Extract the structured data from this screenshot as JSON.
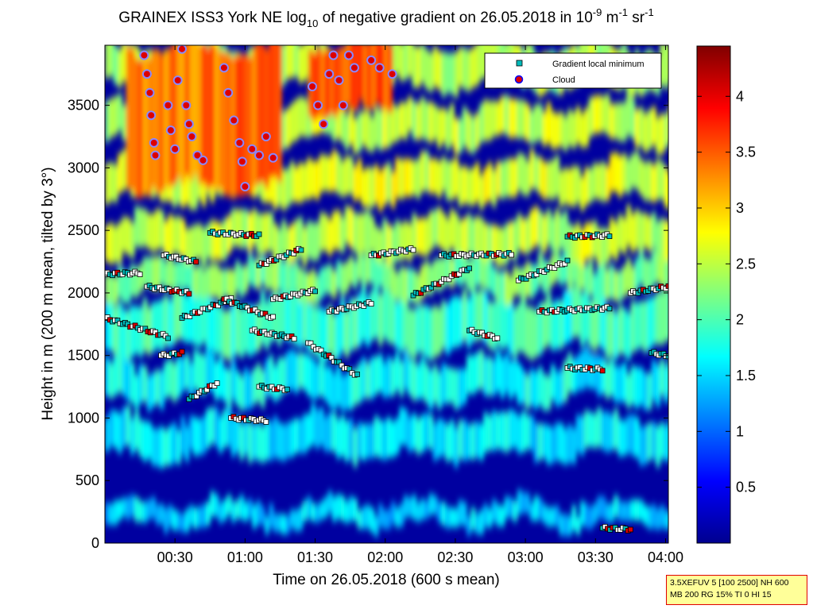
{
  "chart_data": {
    "type": "heatmap",
    "title": {
      "prefix": "GRAINEX ISS3 York NE log",
      "prefix_sub": "10",
      "middle": " of negative gradient on 26.05.2018 in 10",
      "exp1": "-9",
      "unit1": " m",
      "exp2": "-1",
      "unit2": " sr",
      "exp3": "-1"
    },
    "xlabel": "Time on 26.05.2018 (600 s mean)",
    "ylabel": "Height in m (200 m mean, tilted by 3°)",
    "x_ticks": [
      "00:30",
      "01:00",
      "01:30",
      "02:00",
      "02:30",
      "03:00",
      "03:30",
      "04:00"
    ],
    "x_tick_hours": [
      0.5,
      1.0,
      1.5,
      2.0,
      2.5,
      3.0,
      3.5,
      4.0
    ],
    "xlim_hours": [
      0.0,
      4.02
    ],
    "y_ticks": [
      "0",
      "500",
      "1000",
      "1500",
      "2000",
      "2500",
      "3000",
      "3500"
    ],
    "y_tick_values": [
      0,
      500,
      1000,
      1500,
      2000,
      2500,
      3000,
      3500
    ],
    "ylim": [
      0,
      3980
    ],
    "colorbar": {
      "ticks": [
        "0.5",
        "1",
        "1.5",
        "2",
        "2.5",
        "3",
        "3.5",
        "4"
      ],
      "tick_values": [
        0.5,
        1,
        1.5,
        2,
        2.5,
        3,
        3.5,
        4
      ],
      "range": [
        0,
        4.45
      ],
      "colormap": "jet"
    },
    "legend": {
      "position": "top-right",
      "entries": [
        {
          "label": "Gradient local minimum",
          "color": "#00bbbb",
          "marker": "square"
        },
        {
          "label": "Cloud",
          "color": "#dd0000",
          "edge": "#0000ff",
          "marker": "circle"
        }
      ]
    },
    "bands": [
      {
        "t0": 0.0,
        "t1": 4.02,
        "h0": 150,
        "h1": 320,
        "level": 1.5
      },
      {
        "t0": 0.0,
        "t1": 4.02,
        "h0": 700,
        "h1": 1000,
        "level": 1.6
      },
      {
        "t0": 0.0,
        "t1": 4.02,
        "h0": 1150,
        "h1": 1450,
        "level": 1.7
      },
      {
        "t0": 0.0,
        "t1": 4.02,
        "h0": 1550,
        "h1": 1950,
        "level": 1.9
      },
      {
        "t0": 0.0,
        "t1": 4.02,
        "h0": 2000,
        "h1": 2250,
        "level": 2.2
      },
      {
        "t0": 0.0,
        "t1": 4.02,
        "h0": 2300,
        "h1": 2600,
        "level": 2.5
      },
      {
        "t0": 0.0,
        "t1": 4.02,
        "h0": 2750,
        "h1": 3050,
        "level": 2.6
      },
      {
        "t0": 0.0,
        "t1": 4.02,
        "h0": 3200,
        "h1": 3500,
        "level": 2.5
      },
      {
        "t0": 0.0,
        "t1": 4.02,
        "h0": 3650,
        "h1": 3980,
        "level": 2.4
      },
      {
        "t0": 0.15,
        "t1": 1.25,
        "h0": 2850,
        "h1": 3980,
        "level": 3.4
      },
      {
        "t0": 1.45,
        "t1": 2.05,
        "h0": 3450,
        "h1": 3980,
        "level": 3.6
      }
    ],
    "minima_series": [
      {
        "t0": 0.0,
        "t1": 0.25,
        "h0": 2150,
        "h1": 2160
      },
      {
        "t0": 0.0,
        "t1": 0.45,
        "h0": 1800,
        "h1": 1650
      },
      {
        "t0": 0.3,
        "t1": 0.6,
        "h0": 2050,
        "h1": 2000
      },
      {
        "t0": 0.42,
        "t1": 0.65,
        "h0": 2300,
        "h1": 2250
      },
      {
        "t0": 0.4,
        "t1": 0.55,
        "h0": 1500,
        "h1": 1520
      },
      {
        "t0": 0.55,
        "t1": 0.9,
        "h0": 1800,
        "h1": 1950
      },
      {
        "t0": 0.6,
        "t1": 0.8,
        "h0": 1150,
        "h1": 1280
      },
      {
        "t0": 0.75,
        "t1": 1.1,
        "h0": 2480,
        "h1": 2460
      },
      {
        "t0": 0.85,
        "t1": 1.2,
        "h0": 1950,
        "h1": 1800
      },
      {
        "t0": 0.9,
        "t1": 1.15,
        "h0": 1000,
        "h1": 980
      },
      {
        "t0": 1.1,
        "t1": 1.3,
        "h0": 1250,
        "h1": 1230
      },
      {
        "t0": 1.05,
        "t1": 1.35,
        "h0": 1700,
        "h1": 1640
      },
      {
        "t0": 1.1,
        "t1": 1.4,
        "h0": 2220,
        "h1": 2350
      },
      {
        "t0": 1.2,
        "t1": 1.5,
        "h0": 1950,
        "h1": 2020
      },
      {
        "t0": 1.45,
        "t1": 1.8,
        "h0": 1600,
        "h1": 1340
      },
      {
        "t0": 1.6,
        "t1": 1.9,
        "h0": 1850,
        "h1": 1920
      },
      {
        "t0": 1.9,
        "t1": 2.2,
        "h0": 2300,
        "h1": 2350
      },
      {
        "t0": 2.2,
        "t1": 2.6,
        "h0": 1980,
        "h1": 2200
      },
      {
        "t0": 2.4,
        "t1": 2.9,
        "h0": 2300,
        "h1": 2310
      },
      {
        "t0": 2.6,
        "t1": 2.8,
        "h0": 1700,
        "h1": 1640
      },
      {
        "t0": 2.95,
        "t1": 3.3,
        "h0": 2100,
        "h1": 2250
      },
      {
        "t0": 3.1,
        "t1": 3.6,
        "h0": 1850,
        "h1": 1880
      },
      {
        "t0": 3.3,
        "t1": 3.6,
        "h0": 2450,
        "h1": 2460
      },
      {
        "t0": 3.3,
        "t1": 3.55,
        "h0": 1400,
        "h1": 1390
      },
      {
        "t0": 3.55,
        "t1": 3.75,
        "h0": 120,
        "h1": 110
      },
      {
        "t0": 3.75,
        "t1": 4.02,
        "h0": 2000,
        "h1": 2050
      },
      {
        "t0": 3.9,
        "t1": 4.02,
        "h0": 1520,
        "h1": 1500
      }
    ],
    "clouds": [
      {
        "t": 0.28,
        "h": 3900
      },
      {
        "t": 0.3,
        "h": 3750
      },
      {
        "t": 0.32,
        "h": 3600
      },
      {
        "t": 0.33,
        "h": 3420
      },
      {
        "t": 0.35,
        "h": 3200
      },
      {
        "t": 0.36,
        "h": 3100
      },
      {
        "t": 0.45,
        "h": 3500
      },
      {
        "t": 0.47,
        "h": 3300
      },
      {
        "t": 0.5,
        "h": 3150
      },
      {
        "t": 0.52,
        "h": 3700
      },
      {
        "t": 0.55,
        "h": 3950
      },
      {
        "t": 0.58,
        "h": 3500
      },
      {
        "t": 0.6,
        "h": 3350
      },
      {
        "t": 0.62,
        "h": 3250
      },
      {
        "t": 0.66,
        "h": 3100
      },
      {
        "t": 0.7,
        "h": 3060
      },
      {
        "t": 0.85,
        "h": 3800
      },
      {
        "t": 0.88,
        "h": 3600
      },
      {
        "t": 0.92,
        "h": 3380
      },
      {
        "t": 0.96,
        "h": 3200
      },
      {
        "t": 0.98,
        "h": 3050
      },
      {
        "t": 1.0,
        "h": 2850
      },
      {
        "t": 1.05,
        "h": 3150
      },
      {
        "t": 1.1,
        "h": 3100
      },
      {
        "t": 1.15,
        "h": 3250
      },
      {
        "t": 1.2,
        "h": 3080
      },
      {
        "t": 1.48,
        "h": 3650
      },
      {
        "t": 1.52,
        "h": 3500
      },
      {
        "t": 1.56,
        "h": 3350
      },
      {
        "t": 1.6,
        "h": 3750
      },
      {
        "t": 1.63,
        "h": 3900
      },
      {
        "t": 1.67,
        "h": 3700
      },
      {
        "t": 1.7,
        "h": 3500
      },
      {
        "t": 1.74,
        "h": 3900
      },
      {
        "t": 1.78,
        "h": 3800
      },
      {
        "t": 1.9,
        "h": 3860
      },
      {
        "t": 1.96,
        "h": 3800
      },
      {
        "t": 2.05,
        "h": 3750
      }
    ],
    "info_box": [
      "3.5XEFUV 5 [100 2500] NH 600",
      "MB 200 RG 15% TI 0 HI 15"
    ]
  }
}
